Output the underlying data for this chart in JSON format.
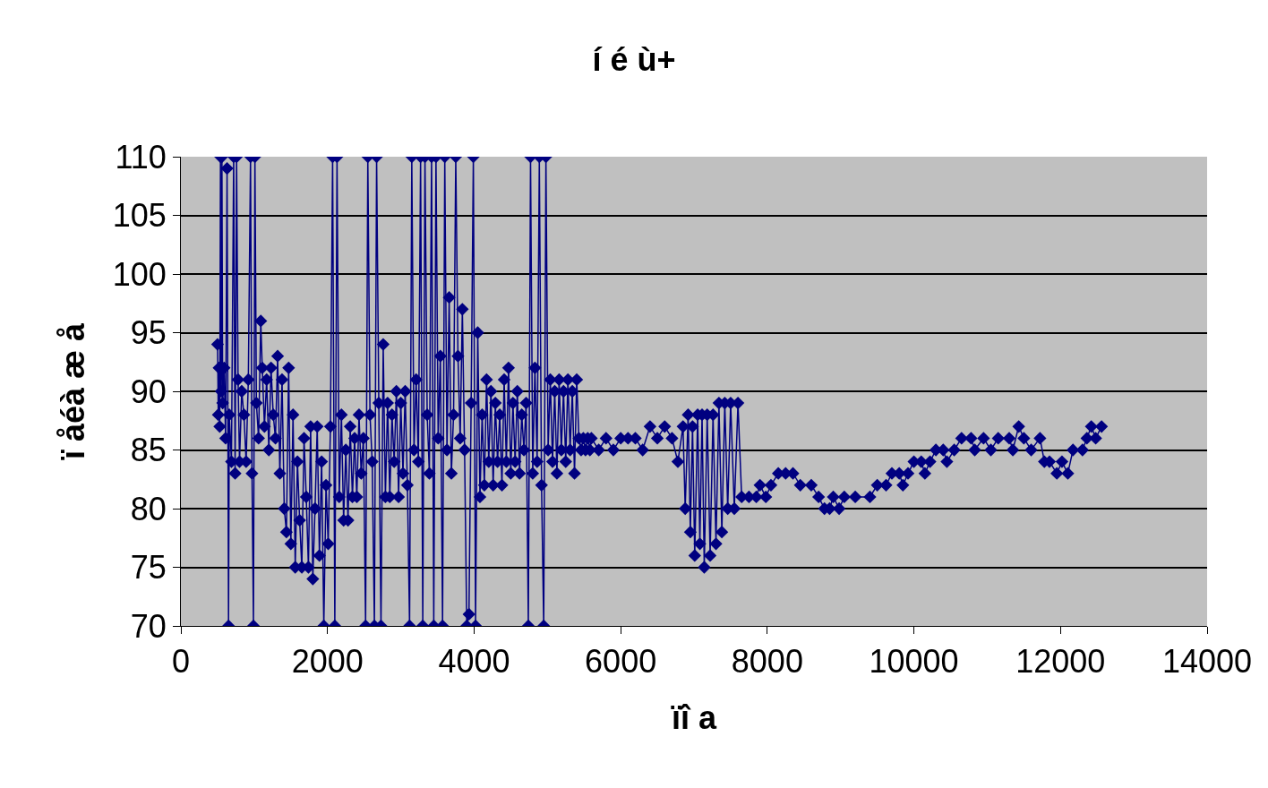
{
  "chart_data": {
    "type": "line",
    "title": "í é ù+",
    "xlabel": "ïî a",
    "ylabel": "ï åéà æ å",
    "x": [
      500,
      510,
      520,
      530,
      540,
      550,
      560,
      570,
      590,
      610,
      630,
      650,
      660,
      690,
      720,
      740,
      760,
      780,
      800,
      830,
      860,
      890,
      920,
      950,
      970,
      990,
      1010,
      1030,
      1060,
      1090,
      1110,
      1140,
      1170,
      1200,
      1230,
      1260,
      1290,
      1320,
      1350,
      1380,
      1410,
      1440,
      1470,
      1500,
      1530,
      1560,
      1590,
      1620,
      1650,
      1680,
      1710,
      1740,
      1770,
      1800,
      1830,
      1860,
      1890,
      1920,
      1950,
      1980,
      2010,
      2040,
      2070,
      2100,
      2130,
      2160,
      2190,
      2220,
      2250,
      2280,
      2310,
      2340,
      2370,
      2400,
      2430,
      2460,
      2490,
      2520,
      2550,
      2580,
      2610,
      2640,
      2670,
      2700,
      2730,
      2760,
      2790,
      2820,
      2850,
      2880,
      2910,
      2940,
      2970,
      3000,
      3030,
      3060,
      3090,
      3120,
      3150,
      3180,
      3210,
      3240,
      3270,
      3300,
      3330,
      3360,
      3390,
      3420,
      3450,
      3480,
      3510,
      3540,
      3570,
      3600,
      3630,
      3660,
      3690,
      3720,
      3750,
      3780,
      3810,
      3840,
      3870,
      3900,
      3930,
      3960,
      3990,
      4020,
      4050,
      4080,
      4110,
      4140,
      4170,
      4200,
      4230,
      4260,
      4290,
      4320,
      4350,
      4380,
      4410,
      4440,
      4470,
      4500,
      4530,
      4560,
      4590,
      4620,
      4650,
      4680,
      4710,
      4740,
      4770,
      4800,
      4830,
      4860,
      4890,
      4920,
      4950,
      4980,
      5010,
      5040,
      5070,
      5100,
      5130,
      5160,
      5190,
      5220,
      5250,
      5280,
      5310,
      5340,
      5370,
      5400,
      5430,
      5460,
      5490,
      5520,
      5550,
      5580,
      5600,
      5700,
      5800,
      5900,
      6000,
      6100,
      6200,
      6300,
      6400,
      6500,
      6600,
      6700,
      6780,
      6850,
      6880,
      6920,
      6950,
      6980,
      7010,
      7050,
      7080,
      7110,
      7140,
      7180,
      7220,
      7260,
      7300,
      7340,
      7380,
      7420,
      7460,
      7500,
      7550,
      7600,
      7650,
      7750,
      7850,
      7900,
      7980,
      8050,
      8150,
      8250,
      8350,
      8450,
      8600,
      8700,
      8780,
      8850,
      8900,
      8980,
      9050,
      9200,
      9400,
      9500,
      9620,
      9700,
      9800,
      9850,
      9920,
      10000,
      10100,
      10150,
      10220,
      10300,
      10400,
      10450,
      10550,
      10650,
      10780,
      10830,
      10950,
      11050,
      11150,
      11300,
      11350,
      11430,
      11500,
      11600,
      11720,
      11780,
      11850,
      11950,
      12020,
      12100,
      12170,
      12300,
      12360,
      12420,
      12480,
      12560
    ],
    "series": [
      {
        "color": "#000080",
        "values": [
          94,
          88,
          92,
          87,
          110,
          90,
          110,
          89,
          92,
          86,
          109,
          70,
          88,
          84,
          110,
          83,
          110,
          91,
          84,
          90,
          88,
          84,
          91,
          110,
          83,
          70,
          110,
          89,
          86,
          96,
          92,
          87,
          91,
          85,
          92,
          88,
          86,
          93,
          83,
          91,
          80,
          78,
          92,
          77,
          88,
          75,
          84,
          79,
          75,
          86,
          81,
          75,
          87,
          74,
          80,
          87,
          76,
          84,
          70,
          82,
          77,
          87,
          110,
          70,
          110,
          81,
          88,
          79,
          85,
          79,
          87,
          81,
          86,
          81,
          88,
          83,
          86,
          70,
          110,
          88,
          84,
          70,
          110,
          89,
          70,
          94,
          81,
          89,
          81,
          88,
          84,
          90,
          81,
          89,
          83,
          90,
          82,
          70,
          110,
          85,
          91,
          84,
          110,
          70,
          110,
          88,
          83,
          110,
          70,
          110,
          86,
          93,
          70,
          110,
          85,
          98,
          83,
          88,
          110,
          93,
          86,
          97,
          85,
          70,
          71,
          89,
          110,
          70,
          95,
          81,
          88,
          82,
          91,
          84,
          90,
          82,
          89,
          84,
          88,
          82,
          91,
          84,
          92,
          83,
          89,
          84,
          90,
          83,
          88,
          85,
          89,
          70,
          110,
          83,
          92,
          84,
          110,
          82,
          70,
          110,
          85,
          91,
          84,
          90,
          83,
          91,
          85,
          90,
          84,
          91,
          85,
          90,
          83,
          91,
          86,
          85,
          86,
          85,
          86,
          85,
          86,
          85,
          86,
          85,
          86,
          86,
          86,
          85,
          87,
          86,
          87,
          86,
          84,
          87,
          80,
          88,
          78,
          87,
          76,
          88,
          77,
          88,
          75,
          88,
          76,
          88,
          77,
          89,
          78,
          89,
          80,
          89,
          80,
          89,
          81,
          81,
          81,
          82,
          81,
          82,
          83,
          83,
          83,
          82,
          82,
          81,
          80,
          80,
          81,
          80,
          81,
          81,
          81,
          82,
          82,
          83,
          83,
          82,
          83,
          84,
          84,
          83,
          84,
          85,
          85,
          84,
          85,
          86,
          86,
          85,
          86,
          85,
          86,
          86,
          85,
          87,
          86,
          85,
          86,
          84,
          84,
          83,
          84,
          83,
          85,
          85,
          86,
          87,
          86,
          87
        ]
      }
    ],
    "xlim": [
      0,
      14000
    ],
    "xticks": [
      0,
      2000,
      4000,
      6000,
      8000,
      10000,
      12000,
      14000
    ],
    "ylim": [
      70,
      110
    ],
    "yticks": [
      70,
      75,
      80,
      85,
      90,
      95,
      100,
      105,
      110
    ],
    "grid": "y",
    "marker": "diamond",
    "line_style": "solid"
  }
}
